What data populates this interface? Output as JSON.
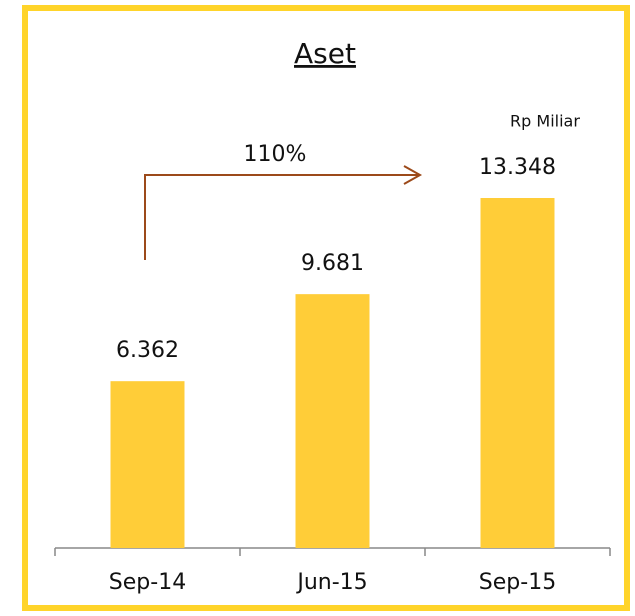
{
  "chart_data": {
    "type": "bar",
    "title": "Aset",
    "unit_label": "Rp Miliar",
    "annotation": "110%",
    "categories": [
      "Sep-14",
      "Jun-15",
      "Sep-15"
    ],
    "values": [
      6.362,
      9.681,
      13.348
    ],
    "color": "#ffcd38",
    "frame_color": "#ffd42a",
    "arrow_color": "#9c4a1a"
  }
}
